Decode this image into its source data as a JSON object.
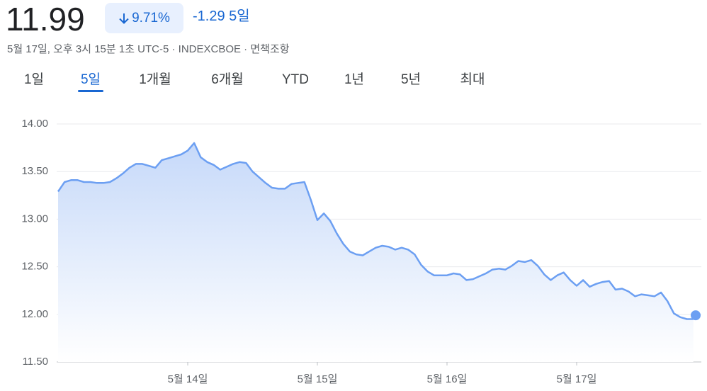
{
  "header": {
    "price": 11.99,
    "change_percent": "9.71%",
    "change": "-1.29",
    "period": "5일",
    "subtitle": "5월 17일, 오후 3시 15분 1초 UTC-5 · INDEXCBOE · 면책조항"
  },
  "tabs": [
    "1일",
    "5일",
    "1개월",
    "6개월",
    "YTD",
    "1년",
    "5년",
    "최대"
  ],
  "selected_tab": 1,
  "chart_data": {
    "type": "area",
    "categories": [
      null,
      null,
      null,
      null,
      null,
      null,
      null,
      null,
      null,
      null,
      null,
      null,
      null,
      null,
      null,
      null,
      null,
      null,
      null,
      null,
      "5월 14일",
      null,
      null,
      null,
      null,
      null,
      null,
      null,
      null,
      null,
      null,
      null,
      null,
      null,
      null,
      null,
      null,
      null,
      null,
      null,
      "5월 15일",
      null,
      null,
      null,
      null,
      null,
      null,
      null,
      null,
      null,
      null,
      null,
      null,
      null,
      null,
      null,
      null,
      null,
      null,
      null,
      "5월 16일",
      null,
      null,
      null,
      null,
      null,
      null,
      null,
      null,
      null,
      null,
      null,
      null,
      null,
      null,
      null,
      null,
      null,
      null,
      null,
      "5월 17일",
      null,
      null,
      null,
      null,
      null,
      null,
      null,
      null,
      null,
      null,
      null,
      null,
      null,
      null,
      null,
      null,
      null,
      null
    ],
    "values": [
      13.29,
      13.39,
      13.41,
      13.41,
      13.39,
      13.39,
      13.38,
      13.38,
      13.39,
      13.43,
      13.48,
      13.54,
      13.58,
      13.58,
      13.56,
      13.54,
      13.62,
      13.64,
      13.66,
      13.68,
      13.72,
      13.8,
      13.65,
      13.6,
      13.57,
      13.52,
      13.55,
      13.58,
      13.6,
      13.59,
      13.5,
      13.44,
      13.38,
      13.33,
      13.32,
      13.32,
      13.37,
      13.38,
      13.39,
      13.2,
      12.99,
      13.06,
      12.98,
      12.85,
      12.74,
      12.66,
      12.63,
      12.62,
      12.66,
      12.7,
      12.72,
      12.71,
      12.68,
      12.7,
      12.68,
      12.63,
      12.52,
      12.45,
      12.41,
      12.41,
      12.41,
      12.43,
      12.42,
      12.36,
      12.37,
      12.4,
      12.43,
      12.47,
      12.48,
      12.47,
      12.51,
      12.56,
      12.55,
      12.57,
      12.51,
      12.42,
      12.36,
      12.41,
      12.44,
      12.36,
      12.3,
      12.36,
      12.29,
      12.32,
      12.34,
      12.35,
      12.26,
      12.27,
      12.24,
      12.19,
      12.21,
      12.2,
      12.19,
      12.23,
      12.14,
      12.01,
      11.97,
      11.95,
      11.95
    ],
    "color": "#6c9ff2",
    "ylim": [
      11.5,
      14.0
    ],
    "yticks": [
      {
        "value": 11.5,
        "label": "11.50"
      },
      {
        "value": 12,
        "label": "12.00"
      },
      {
        "value": 12.5,
        "label": "12.50"
      },
      {
        "value": 13,
        "label": "13.00"
      },
      {
        "value": 13.5,
        "label": "13.50"
      },
      {
        "value": 14,
        "label": "14.00"
      }
    ],
    "grid": true
  }
}
